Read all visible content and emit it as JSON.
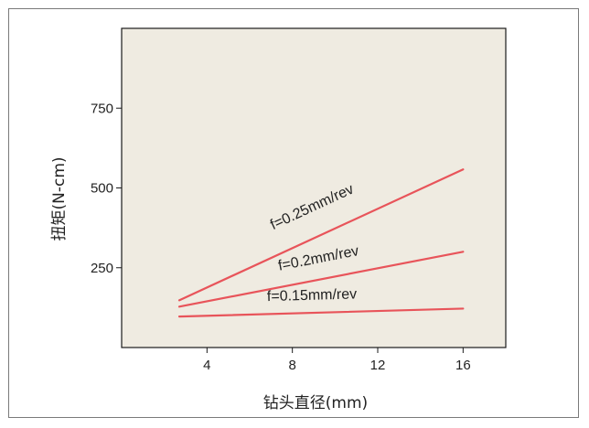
{
  "chart_data": {
    "type": "line",
    "xlabel": "钻头直径(mm)",
    "ylabel": "扭矩(N-cm)",
    "xlim": [
      0,
      18
    ],
    "ylim": [
      0,
      1000
    ],
    "x_ticks": [
      4,
      8,
      12,
      16
    ],
    "y_ticks": [
      250,
      500,
      750
    ],
    "grid": false,
    "plot_background": "#efebe1",
    "line_color": "#e8545a",
    "series": [
      {
        "name": "f=0.25mm/rev",
        "x": [
          2.7,
          16
        ],
        "y": [
          148,
          558
        ]
      },
      {
        "name": "f=0.2mm/rev",
        "x": [
          2.7,
          16
        ],
        "y": [
          128,
          300
        ]
      },
      {
        "name": "f=0.15mm/rev",
        "x": [
          2.7,
          16
        ],
        "y": [
          97,
          122
        ]
      }
    ]
  }
}
